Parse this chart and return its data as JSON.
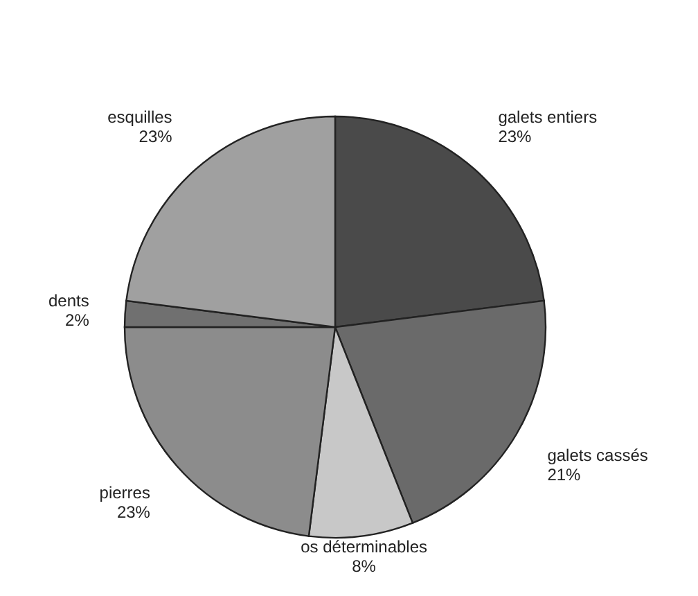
{
  "chart_data": {
    "type": "pie",
    "categories": [
      "galets entiers",
      "galets cassés",
      "os déterminables",
      "pierres",
      "dents",
      "esquilles"
    ],
    "values": [
      23,
      21,
      8,
      23,
      2,
      23
    ],
    "value_labels": [
      "23%",
      "21%",
      "8%",
      "23%",
      "2%",
      "23%"
    ],
    "colors": [
      "#4a4a4a",
      "#6a6a6a",
      "#c8c8c8",
      "#8c8c8c",
      "#707070",
      "#a0a0a0"
    ]
  }
}
